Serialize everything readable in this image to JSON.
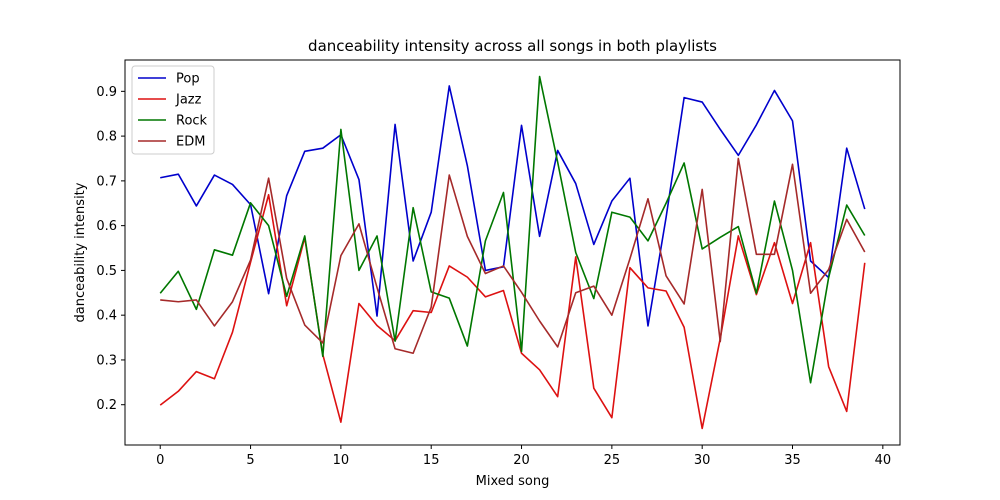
{
  "chart_data": {
    "type": "line",
    "title": "danceability intensity across all songs in both playlists",
    "xlabel": "Mixed song",
    "ylabel": "danceability intensity",
    "xlim": [
      -1.95,
      40.95
    ],
    "ylim": [
      0.11,
      0.97
    ],
    "xticks": [
      0,
      5,
      10,
      15,
      20,
      25,
      30,
      35,
      40
    ],
    "yticks": [
      0.2,
      0.3,
      0.4,
      0.5,
      0.6,
      0.7,
      0.8,
      0.9
    ],
    "grid": false,
    "legend_position": "upper-left",
    "x": [
      0,
      1,
      2,
      3,
      4,
      5,
      6,
      7,
      8,
      9,
      10,
      11,
      12,
      13,
      14,
      15,
      16,
      17,
      18,
      19,
      20,
      21,
      22,
      23,
      24,
      25,
      26,
      27,
      28,
      29,
      30,
      31,
      32,
      33,
      34,
      35,
      36,
      37,
      38,
      39
    ],
    "series": [
      {
        "name": "Pop",
        "color": "#0000cc",
        "values": [
          0.707,
          0.715,
          0.644,
          0.713,
          0.692,
          0.647,
          0.448,
          0.667,
          0.766,
          0.773,
          0.803,
          0.703,
          0.398,
          0.826,
          0.521,
          0.63,
          0.912,
          0.734,
          0.5,
          0.508,
          0.824,
          0.576,
          0.768,
          0.694,
          0.558,
          0.655,
          0.706,
          0.376,
          0.618,
          0.886,
          0.876,
          0.815,
          0.757,
          0.825,
          0.902,
          0.834,
          0.521,
          0.484,
          0.773,
          0.637
        ]
      },
      {
        "name": "Jazz",
        "color": "#dd1111",
        "values": [
          0.199,
          0.23,
          0.274,
          0.258,
          0.362,
          0.518,
          0.669,
          0.421,
          0.573,
          0.312,
          0.161,
          0.426,
          0.377,
          0.343,
          0.41,
          0.406,
          0.51,
          0.485,
          0.441,
          0.455,
          0.315,
          0.278,
          0.218,
          0.53,
          0.237,
          0.171,
          0.506,
          0.461,
          0.454,
          0.373,
          0.147,
          0.348,
          0.577,
          0.446,
          0.562,
          0.426,
          0.562,
          0.285,
          0.185,
          0.517
        ]
      },
      {
        "name": "Rock",
        "color": "#007700",
        "values": [
          0.449,
          0.498,
          0.413,
          0.546,
          0.534,
          0.651,
          0.6,
          0.442,
          0.577,
          0.308,
          0.815,
          0.5,
          0.577,
          0.342,
          0.64,
          0.452,
          0.438,
          0.331,
          0.566,
          0.674,
          0.319,
          0.933,
          0.742,
          0.54,
          0.437,
          0.63,
          0.619,
          0.566,
          0.65,
          0.74,
          0.548,
          0.574,
          0.598,
          0.449,
          0.655,
          0.5,
          0.249,
          0.484,
          0.646,
          0.578
        ]
      },
      {
        "name": "EDM",
        "color": "#a52a2a",
        "values": [
          0.434,
          0.43,
          0.434,
          0.376,
          0.43,
          0.523,
          0.706,
          0.482,
          0.378,
          0.338,
          0.533,
          0.604,
          0.462,
          0.325,
          0.315,
          0.418,
          0.713,
          0.576,
          0.493,
          0.51,
          0.451,
          0.387,
          0.329,
          0.45,
          0.465,
          0.4,
          0.526,
          0.66,
          0.488,
          0.425,
          0.681,
          0.341,
          0.75,
          0.536,
          0.536,
          0.737,
          0.449,
          0.502,
          0.614,
          0.541
        ]
      }
    ]
  }
}
